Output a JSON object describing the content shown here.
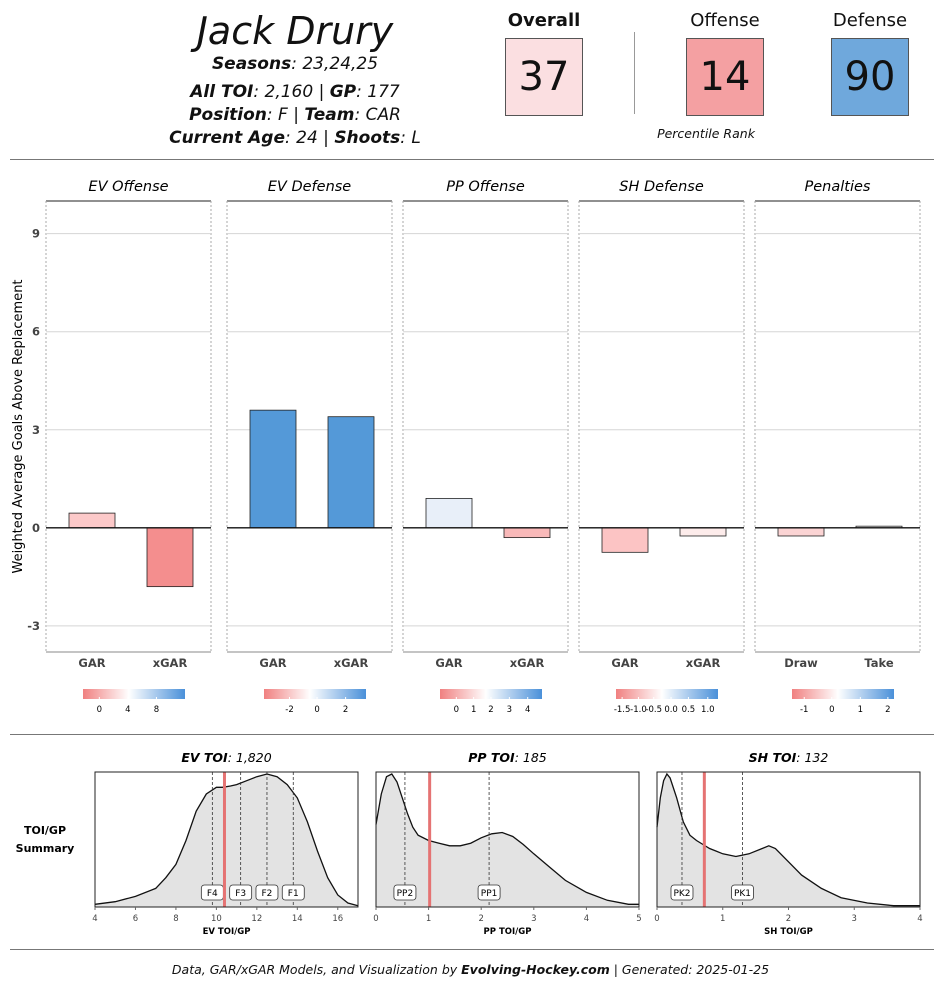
{
  "player": {
    "name": "Jack Drury",
    "seasons_label": "Seasons",
    "seasons": "23,24,25",
    "toi_label": "All TOI",
    "toi": "2,160",
    "gp_label": "GP",
    "gp": "177",
    "position_label": "Position",
    "position": "F",
    "team_label": "Team",
    "team": "CAR",
    "age_label": "Current Age",
    "age": "24",
    "shoots_label": "Shoots",
    "shoots": "L"
  },
  "scores": {
    "overall_label": "Overall",
    "overall": "37",
    "overall_color": "#fbdfe1",
    "offense_label": "Offense",
    "offense": "14",
    "offense_color": "#f4a0a2",
    "defense_label": "Defense",
    "defense": "90",
    "defense_color": "#6fa8dc",
    "percentile_label": "Percentile Rank"
  },
  "chart_data": [
    {
      "type": "bar",
      "ylabel": "Weighted Average Goals Above Replacement",
      "ylim": [
        -3.8,
        10.0
      ],
      "yticks": [
        -3,
        0,
        3,
        6,
        9
      ],
      "grid": true,
      "panels": [
        {
          "title": "EV Offense",
          "categories": [
            "GAR",
            "xGAR"
          ],
          "values": [
            0.45,
            -1.8
          ],
          "colors": [
            "#fcc9c9",
            "#f48e8e"
          ],
          "scale": {
            "ticks": [
              "0",
              "4",
              "8"
            ],
            "positions": [
              0.16,
              0.44,
              0.72
            ],
            "zero": 0.16
          }
        },
        {
          "title": "EV Defense",
          "categories": [
            "GAR",
            "xGAR"
          ],
          "values": [
            3.6,
            3.4
          ],
          "colors": [
            "#5499d8",
            "#5499d8"
          ],
          "scale": {
            "ticks": [
              "-2",
              "0",
              "2"
            ],
            "positions": [
              0.25,
              0.52,
              0.8
            ],
            "zero": 0.52
          }
        },
        {
          "title": "PP Offense",
          "categories": [
            "GAR",
            "xGAR"
          ],
          "values": [
            0.9,
            -0.3
          ],
          "colors": [
            "#e8eff9",
            "#f9b9b9"
          ],
          "scale": {
            "ticks": [
              "0",
              "1",
              "2",
              "3",
              "4"
            ],
            "positions": [
              0.16,
              0.33,
              0.5,
              0.68,
              0.86
            ],
            "zero": 0.16
          }
        },
        {
          "title": "SH Defense",
          "categories": [
            "GAR",
            "xGAR"
          ],
          "values": [
            -0.75,
            -0.25
          ],
          "colors": [
            "#fcc4c4",
            "#fdeceb"
          ],
          "scale": {
            "ticks": [
              "-1.5",
              "-1.0",
              "-0.5",
              "0.0",
              "0.5",
              "1.0"
            ],
            "positions": [
              0.06,
              0.22,
              0.37,
              0.54,
              0.71,
              0.9
            ],
            "zero": 0.54
          }
        },
        {
          "title": "Penalties",
          "categories": [
            "Draw",
            "Take"
          ],
          "values": [
            -0.25,
            0.05
          ],
          "colors": [
            "#fbd4d4",
            "#f7f7f7"
          ],
          "scale": {
            "ticks": [
              "-1",
              "0",
              "1",
              "2"
            ],
            "positions": [
              0.12,
              0.39,
              0.67,
              0.94
            ],
            "zero": 0.39
          }
        }
      ]
    },
    {
      "type": "area",
      "summary_label": "TOI/GP Summary",
      "panels": [
        {
          "title_bold": "EV TOI",
          "title_value": "1,820",
          "xlabel": "EV TOI/GP",
          "xlim": [
            4,
            17
          ],
          "xticks": [
            4,
            6,
            8,
            10,
            12,
            14,
            16
          ],
          "player_value": 10.4,
          "markers": [
            {
              "label": "F4",
              "x": 9.8
            },
            {
              "label": "F3",
              "x": 11.2
            },
            {
              "label": "F2",
              "x": 12.5
            },
            {
              "label": "F1",
              "x": 13.8
            }
          ],
          "x": [
            4.0,
            5,
            6,
            7,
            7.5,
            8,
            8.5,
            9,
            9.5,
            10,
            10.3,
            10.7,
            11,
            11.5,
            12,
            12.5,
            13,
            13.5,
            14,
            14.5,
            15,
            15.5,
            16,
            16.5,
            17
          ],
          "density": [
            0.02,
            0.04,
            0.08,
            0.14,
            0.22,
            0.32,
            0.5,
            0.72,
            0.85,
            0.9,
            0.9,
            0.91,
            0.92,
            0.95,
            0.98,
            1.0,
            0.98,
            0.92,
            0.82,
            0.64,
            0.42,
            0.22,
            0.09,
            0.03,
            0.01
          ]
        },
        {
          "title_bold": "PP TOI",
          "title_value": "185",
          "xlabel": "PP TOI/GP",
          "xlim": [
            0,
            5
          ],
          "xticks": [
            0,
            1,
            2,
            3,
            4,
            5
          ],
          "player_value": 1.02,
          "markers": [
            {
              "label": "PP2",
              "x": 0.55
            },
            {
              "label": "PP1",
              "x": 2.15
            }
          ],
          "x": [
            0.0,
            0.1,
            0.2,
            0.3,
            0.4,
            0.5,
            0.6,
            0.7,
            0.8,
            1.0,
            1.2,
            1.4,
            1.6,
            1.8,
            2.0,
            2.2,
            2.4,
            2.6,
            2.8,
            3.0,
            3.3,
            3.6,
            4.0,
            4.4,
            4.8,
            5.0
          ],
          "density": [
            0.62,
            0.85,
            0.98,
            1.0,
            0.94,
            0.82,
            0.7,
            0.6,
            0.54,
            0.5,
            0.48,
            0.46,
            0.46,
            0.48,
            0.52,
            0.55,
            0.56,
            0.53,
            0.47,
            0.4,
            0.3,
            0.2,
            0.11,
            0.05,
            0.02,
            0.02
          ]
        },
        {
          "title_bold": "SH TOI",
          "title_value": "132",
          "xlabel": "SH TOI/GP",
          "xlim": [
            0,
            4
          ],
          "xticks": [
            0,
            1,
            2,
            3,
            4
          ],
          "player_value": 0.72,
          "markers": [
            {
              "label": "PK2",
              "x": 0.38
            },
            {
              "label": "PK1",
              "x": 1.3
            }
          ],
          "x": [
            0.0,
            0.05,
            0.1,
            0.15,
            0.2,
            0.3,
            0.4,
            0.5,
            0.6,
            0.7,
            0.8,
            0.9,
            1.0,
            1.2,
            1.4,
            1.6,
            1.7,
            1.8,
            2.0,
            2.2,
            2.5,
            2.8,
            3.2,
            3.6,
            4.0
          ],
          "density": [
            0.6,
            0.82,
            0.95,
            1.0,
            0.97,
            0.82,
            0.64,
            0.54,
            0.5,
            0.47,
            0.44,
            0.42,
            0.4,
            0.38,
            0.4,
            0.44,
            0.46,
            0.44,
            0.34,
            0.24,
            0.14,
            0.07,
            0.03,
            0.01,
            0.01
          ]
        }
      ]
    }
  ],
  "footer": {
    "prefix": "Data, GAR/xGAR Models, and Visualization by ",
    "brand": "Evolving-Hockey.com",
    "suffix": " | Generated: 2025-01-25"
  }
}
